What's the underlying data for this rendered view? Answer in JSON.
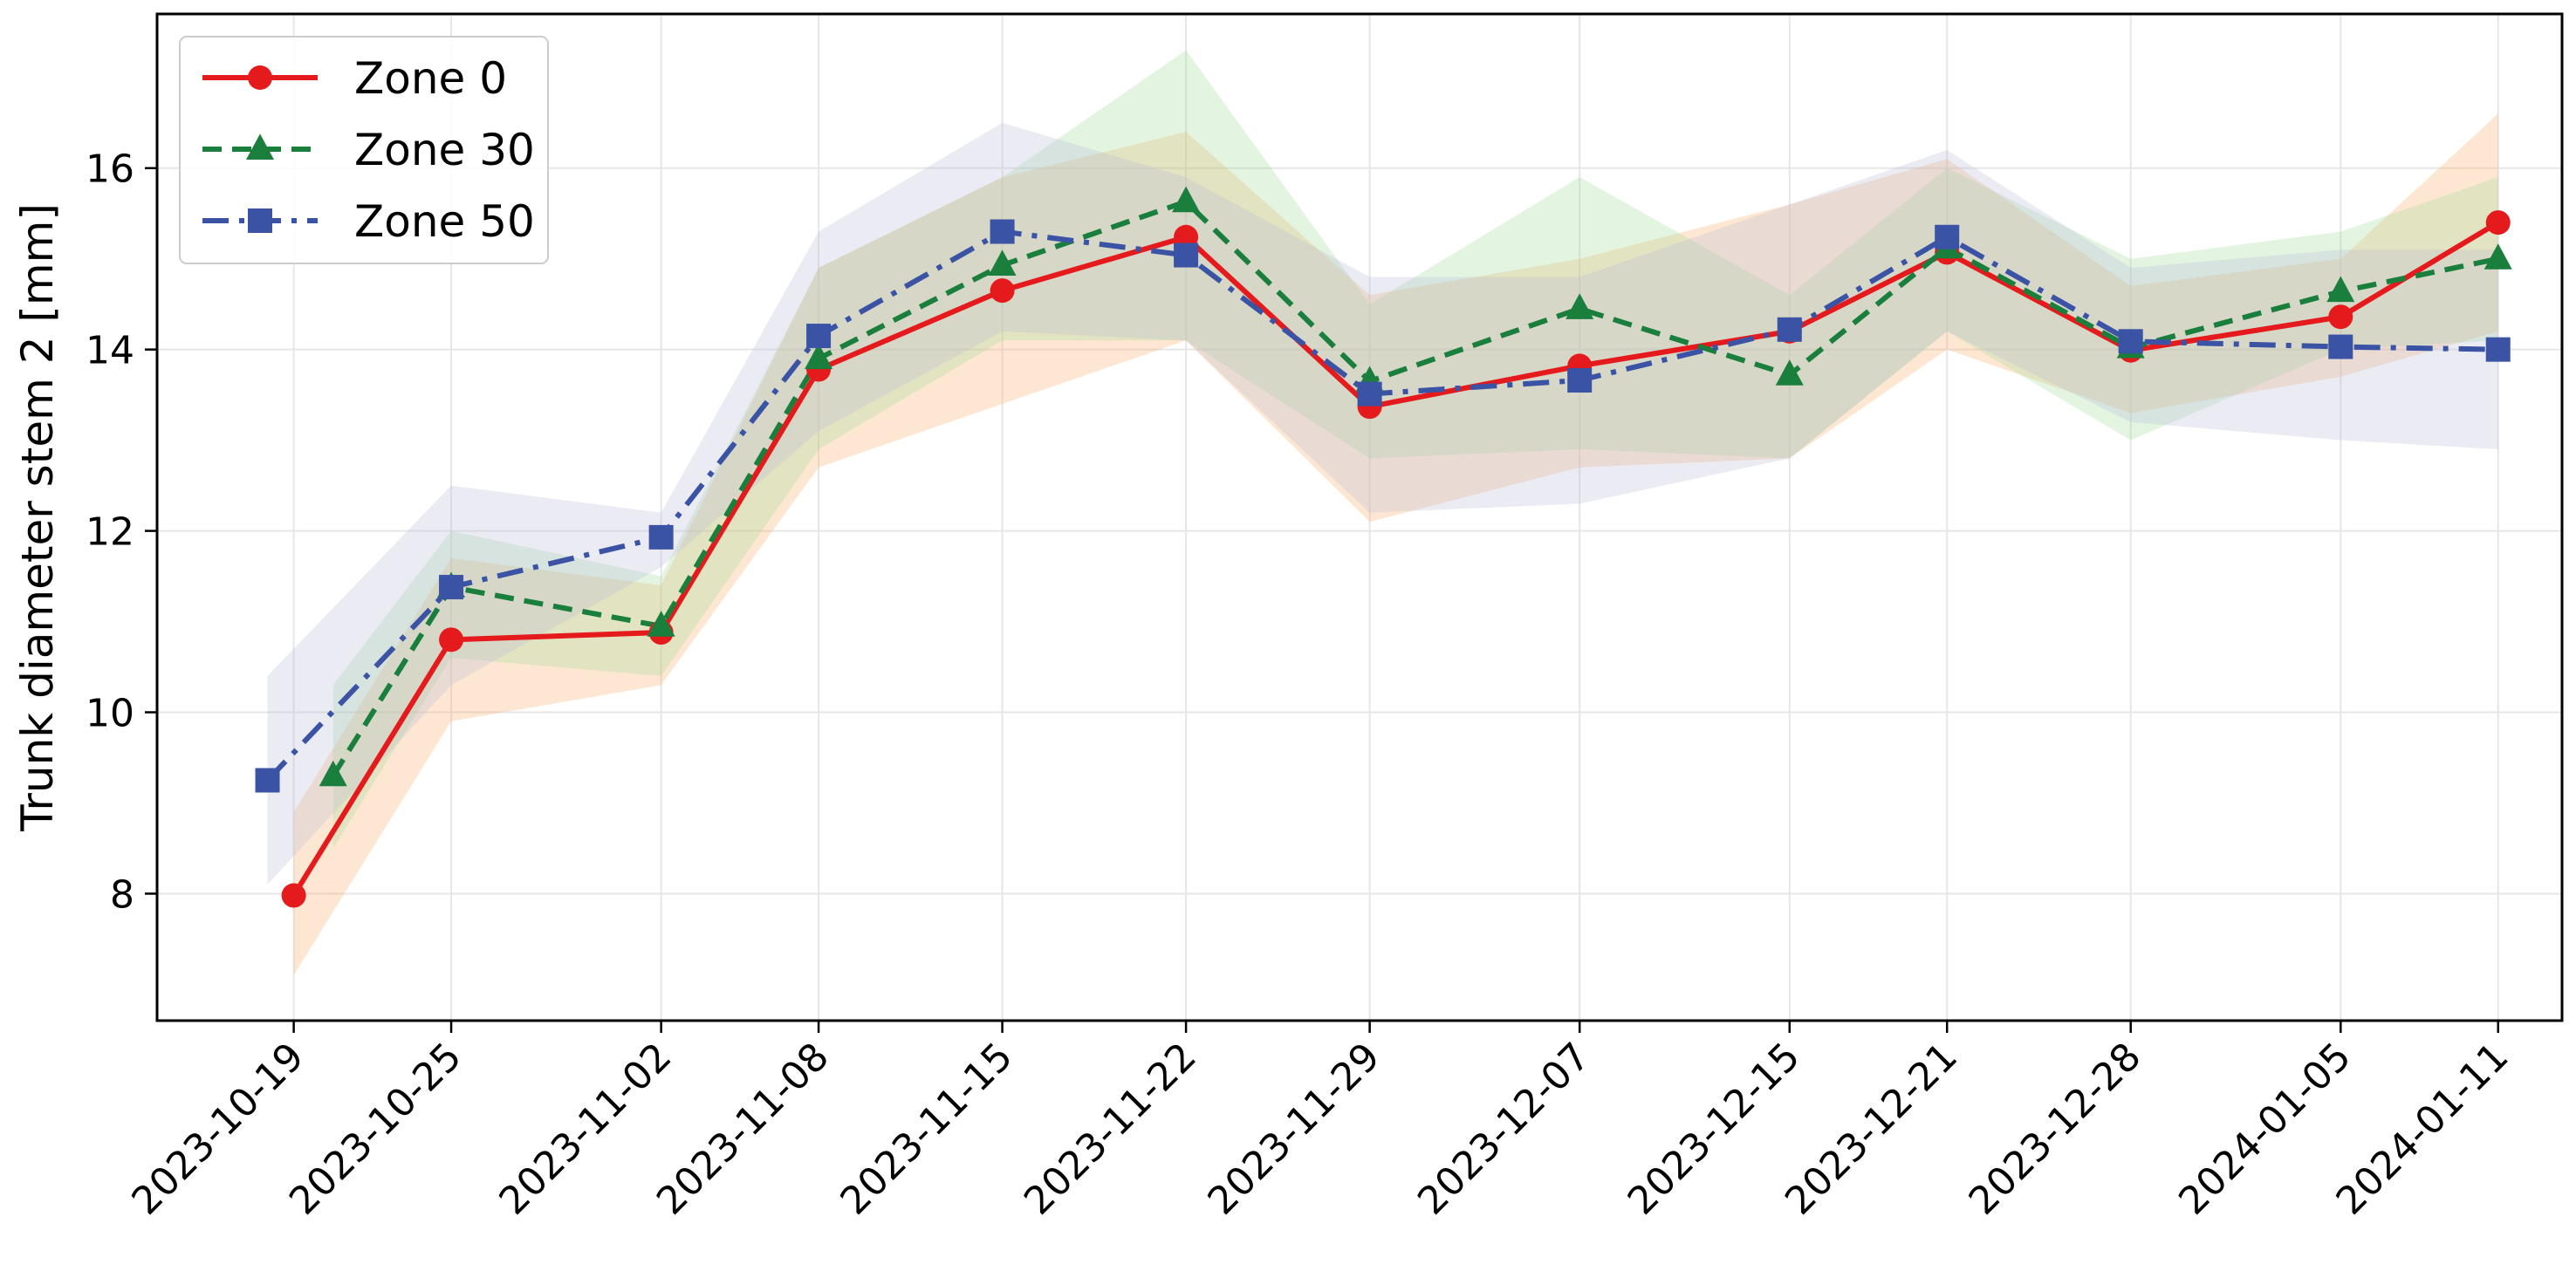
{
  "chart_data": {
    "type": "line",
    "title": "",
    "xlabel": "",
    "ylabel": "Trunk diameter stem 2 [mm]",
    "ylim": [
      6.6,
      17.7
    ],
    "yticks": [
      8,
      10,
      12,
      14,
      16
    ],
    "grid": true,
    "legend": "top-left",
    "x": [
      "2023-10-19",
      "2023-10-25",
      "2023-11-02",
      "2023-11-08",
      "2023-11-15",
      "2023-11-22",
      "2023-11-29",
      "2023-12-07",
      "2023-12-15",
      "2023-12-21",
      "2023-12-28",
      "2024-01-05",
      "2024-01-11"
    ],
    "series": [
      {
        "name": "Zone 0",
        "color": "#e41a1c",
        "band_color": "#fdae6b",
        "line_style": "solid",
        "marker": "circle",
        "x_offset_days": [
          0,
          0,
          0,
          0,
          0,
          0,
          0,
          0,
          0,
          0,
          0,
          0,
          0
        ],
        "values": [
          7.98,
          10.8,
          10.88,
          13.78,
          14.65,
          15.24,
          13.37,
          13.82,
          14.2,
          15.07,
          13.99,
          14.36,
          15.4
        ],
        "upper": [
          8.9,
          11.7,
          11.4,
          14.9,
          15.9,
          16.4,
          14.6,
          15.0,
          15.6,
          16.1,
          14.7,
          15.0,
          16.6
        ],
        "lower": [
          7.1,
          9.9,
          10.3,
          12.7,
          13.4,
          14.1,
          12.1,
          12.7,
          12.8,
          14.0,
          13.3,
          13.7,
          14.2
        ]
      },
      {
        "name": "Zone 30",
        "color": "#1a7f3c",
        "band_color": "#a1d99b",
        "line_style": "dashed",
        "marker": "triangle",
        "x_offset_days": [
          1.5,
          0,
          0,
          0,
          0,
          0,
          0,
          0,
          0,
          0,
          0,
          0,
          0
        ],
        "values": [
          9.3,
          11.38,
          10.95,
          13.9,
          14.93,
          15.63,
          13.65,
          14.45,
          13.72,
          15.12,
          14.02,
          14.64,
          15.0
        ],
        "upper": [
          10.3,
          12.0,
          11.5,
          14.9,
          15.9,
          17.3,
          14.5,
          15.9,
          14.6,
          16.0,
          15.0,
          15.3,
          15.9
        ],
        "lower": [
          8.5,
          10.6,
          10.4,
          12.9,
          14.1,
          14.1,
          12.8,
          12.9,
          12.8,
          14.2,
          13.0,
          14.0,
          14.1
        ]
      },
      {
        "name": "Zone 50",
        "color": "#3a53a4",
        "band_color": "#bcbddc",
        "line_style": "dashdot",
        "marker": "square",
        "x_offset_days": [
          -1,
          0,
          0,
          0,
          0,
          0,
          0,
          0,
          0,
          0,
          0,
          0,
          0
        ],
        "values": [
          9.25,
          11.38,
          11.93,
          14.15,
          15.3,
          15.04,
          13.51,
          13.66,
          14.22,
          15.24,
          14.09,
          14.03,
          14.0
        ],
        "upper": [
          10.4,
          12.5,
          12.2,
          15.3,
          16.5,
          15.9,
          14.8,
          14.8,
          15.6,
          16.2,
          14.9,
          15.1,
          15.1
        ],
        "lower": [
          8.1,
          10.3,
          11.6,
          13.1,
          14.2,
          14.1,
          12.2,
          12.3,
          12.8,
          14.2,
          13.2,
          13.0,
          12.9
        ]
      }
    ]
  }
}
